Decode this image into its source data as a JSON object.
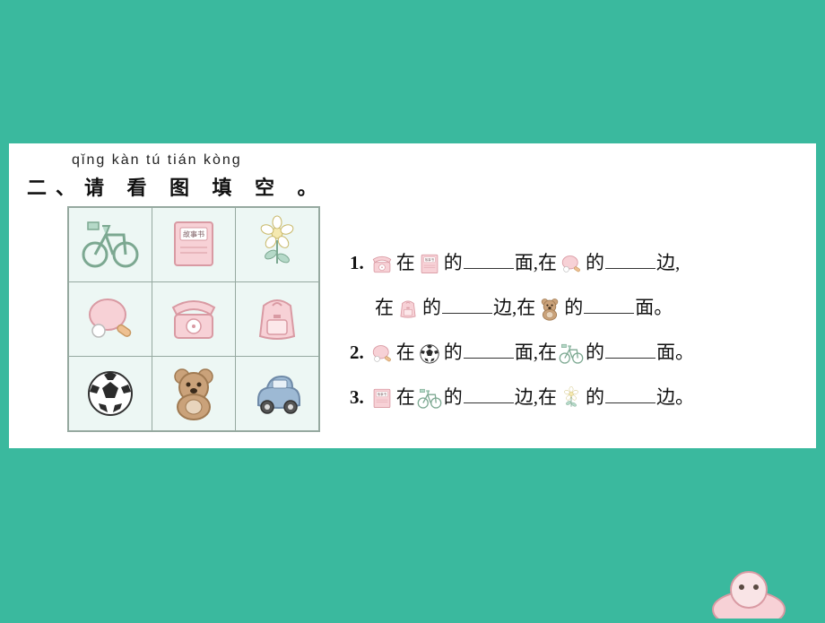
{
  "colors": {
    "page_bg": "#3ab99e",
    "sheet_bg": "#ffffff",
    "grid_bg": "#edf7f4",
    "grid_border": "#96a9a0",
    "text": "#111111",
    "blank_line": "#333333",
    "pink": "#f7d1d6",
    "pink_dark": "#d99aa3",
    "green": "#b5d9c8",
    "green_dark": "#7ca891",
    "yellow": "#f5e9b0",
    "brown": "#caa27a",
    "blue": "#9db9d4",
    "orange": "#eec091",
    "black": "#2b2b2b"
  },
  "pinyin": "qǐng kàn  tú  tián kòng",
  "heading": "二、请 看 图 填 空 。",
  "grid": [
    [
      "bicycle",
      "book",
      "flower"
    ],
    [
      "paddle",
      "telephone",
      "backpack"
    ],
    [
      "soccer",
      "bear",
      "car"
    ]
  ],
  "questions": [
    {
      "num": "1.",
      "parts": [
        {
          "icon": "telephone"
        },
        {
          "text": "在"
        },
        {
          "icon": "book"
        },
        {
          "text": "的"
        },
        {
          "blank": true
        },
        {
          "text": "面,在"
        },
        {
          "icon": "paddle"
        },
        {
          "text": "的"
        },
        {
          "blank": true
        },
        {
          "text": "边,"
        }
      ],
      "line2": [
        {
          "indent": true
        },
        {
          "text": "在"
        },
        {
          "icon": "backpack"
        },
        {
          "text": "的"
        },
        {
          "blank": true
        },
        {
          "text": "边,在"
        },
        {
          "icon": "bear"
        },
        {
          "text": "的"
        },
        {
          "blank": true
        },
        {
          "text": "面。"
        }
      ]
    },
    {
      "num": "2.",
      "parts": [
        {
          "icon": "paddle"
        },
        {
          "text": "在"
        },
        {
          "icon": "soccer"
        },
        {
          "text": "的"
        },
        {
          "blank": true
        },
        {
          "text": "面,在"
        },
        {
          "icon": "bicycle"
        },
        {
          "text": "的"
        },
        {
          "blank": true
        },
        {
          "text": "面。"
        }
      ]
    },
    {
      "num": "3.",
      "parts": [
        {
          "icon": "book"
        },
        {
          "text": "在"
        },
        {
          "icon": "bicycle"
        },
        {
          "text": "的"
        },
        {
          "blank": true
        },
        {
          "text": "边,在"
        },
        {
          "icon": "flower"
        },
        {
          "text": "的"
        },
        {
          "blank": true
        },
        {
          "text": "边。"
        }
      ]
    }
  ],
  "book_label": "故事书"
}
